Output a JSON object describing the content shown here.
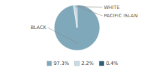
{
  "chart_data": {
    "type": "pie",
    "categories": [
      "BLACK",
      "WHITE",
      "PACIFIC ISLAN"
    ],
    "values": [
      97.3,
      2.2,
      0.4
    ],
    "value_labels": [
      "97.3%",
      "2.2%",
      "0.4%"
    ],
    "colors": [
      "#7fa8bb",
      "#c8dce6",
      "#2e5f7a"
    ],
    "legend": "bottom"
  }
}
